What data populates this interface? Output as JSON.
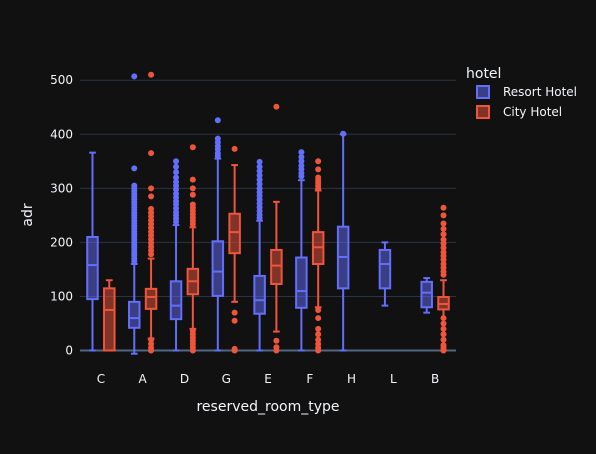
{
  "chart_data": {
    "type": "box",
    "xlabel": "reserved_room_type",
    "ylabel": "adr",
    "categories": [
      "C",
      "A",
      "D",
      "G",
      "E",
      "F",
      "H",
      "L",
      "B"
    ],
    "ylim": [
      -20,
      540
    ],
    "yticks": [
      0,
      100,
      200,
      300,
      400,
      500
    ],
    "grid": true,
    "legend": {
      "title": "hotel",
      "placement": "right"
    },
    "colors": {
      "background": "#111111",
      "grid": "#283442",
      "text": "#f2f5fa"
    },
    "series": [
      {
        "name": "Resort Hotel",
        "color": "#636efa",
        "fill": "rgba(99,110,250,0.5)",
        "boxes": [
          {
            "category": "C",
            "lower_fence": 0,
            "q1": 95,
            "median": 158,
            "q3": 210,
            "upper_fence": 366,
            "outliers": []
          },
          {
            "category": "A",
            "lower_fence": -6,
            "q1": 42,
            "median": 60,
            "q3": 90,
            "upper_fence": 160,
            "outliers": [
              507,
              337,
              305,
              300,
              295,
              290,
              285,
              280,
              275,
              270,
              265,
              260,
              255,
              250,
              245,
              240,
              235,
              230,
              225,
              220,
              215,
              210,
              205,
              200,
              195,
              190,
              185,
              180,
              175,
              170,
              165
            ]
          },
          {
            "category": "D",
            "lower_fence": 0,
            "q1": 58,
            "median": 83,
            "q3": 128,
            "upper_fence": 232,
            "outliers": [
              350,
              340,
              330,
              320,
              312,
              305,
              298,
              290,
              283,
              276,
              270,
              263,
              256,
              250,
              244,
              238
            ]
          },
          {
            "category": "G",
            "lower_fence": 0,
            "q1": 101,
            "median": 146,
            "q3": 202,
            "upper_fence": 355,
            "outliers": [
              426,
              392,
              385,
              378,
              372,
              365,
              360
            ]
          },
          {
            "category": "E",
            "lower_fence": 0,
            "q1": 68,
            "median": 93,
            "q3": 138,
            "upper_fence": 240,
            "outliers": [
              349,
              340,
              332,
              324,
              316,
              308,
              300,
              293,
              286,
              279,
              272,
              265,
              258,
              251,
              245
            ]
          },
          {
            "category": "F",
            "lower_fence": 0,
            "q1": 79,
            "median": 110,
            "q3": 172,
            "upper_fence": 315,
            "outliers": [
              367,
              358,
              350,
              342,
              335,
              328,
              322
            ]
          },
          {
            "category": "H",
            "lower_fence": 0,
            "q1": 115,
            "median": 173,
            "q3": 229,
            "upper_fence": 400,
            "outliers": [
              401
            ]
          },
          {
            "category": "L",
            "lower_fence": 83,
            "q1": 115,
            "median": 160,
            "q3": 186,
            "upper_fence": 200,
            "outliers": []
          },
          {
            "category": "B",
            "lower_fence": 70,
            "q1": 80,
            "median": 107,
            "q3": 127,
            "upper_fence": 134,
            "outliers": []
          }
        ]
      },
      {
        "name": "City Hotel",
        "color": "#ef553b",
        "fill": "rgba(239,85,59,0.5)",
        "boxes": [
          {
            "category": "C",
            "lower_fence": 0,
            "q1": 0,
            "median": 75,
            "q3": 115,
            "upper_fence": 130,
            "outliers": []
          },
          {
            "category": "A",
            "lower_fence": 22,
            "q1": 77,
            "median": 99,
            "q3": 114,
            "upper_fence": 170,
            "outliers": [
              510,
              365,
              300,
              285,
              262,
              255,
              248,
              241,
              234,
              227,
              220,
              213,
              206,
              199,
              192,
              185,
              178,
              20,
              12,
              5,
              0
            ]
          },
          {
            "category": "D",
            "lower_fence": 40,
            "q1": 104,
            "median": 128,
            "q3": 151,
            "upper_fence": 228,
            "outliers": [
              376,
              316,
              300,
              288,
              270,
              264,
              258,
              252,
              246,
              240,
              234,
              36,
              30,
              24,
              18,
              12,
              6,
              0
            ]
          },
          {
            "category": "G",
            "lower_fence": 90,
            "q1": 180,
            "median": 219,
            "q3": 253,
            "upper_fence": 343,
            "outliers": [
              373,
              70,
              55,
              3,
              0
            ]
          },
          {
            "category": "E",
            "lower_fence": 35,
            "q1": 123,
            "median": 157,
            "q3": 186,
            "upper_fence": 275,
            "outliers": [
              451,
              18,
              6,
              0
            ]
          },
          {
            "category": "F",
            "lower_fence": 80,
            "q1": 160,
            "median": 191,
            "q3": 219,
            "upper_fence": 296,
            "outliers": [
              350,
              335,
              320,
              315,
              310,
              305,
              300,
              75,
              60,
              40,
              30,
              20,
              12,
              5,
              0
            ]
          },
          {
            "category": "B",
            "lower_fence": 0,
            "q1": 76,
            "median": 86,
            "q3": 99,
            "upper_fence": 130,
            "outliers": [
              264,
              250,
              235,
              225,
              215,
              205,
              198,
              190,
              182,
              175,
              168,
              160,
              153,
              146,
              140,
              60,
              50,
              40,
              30,
              20,
              10,
              5,
              0
            ]
          }
        ]
      }
    ]
  }
}
